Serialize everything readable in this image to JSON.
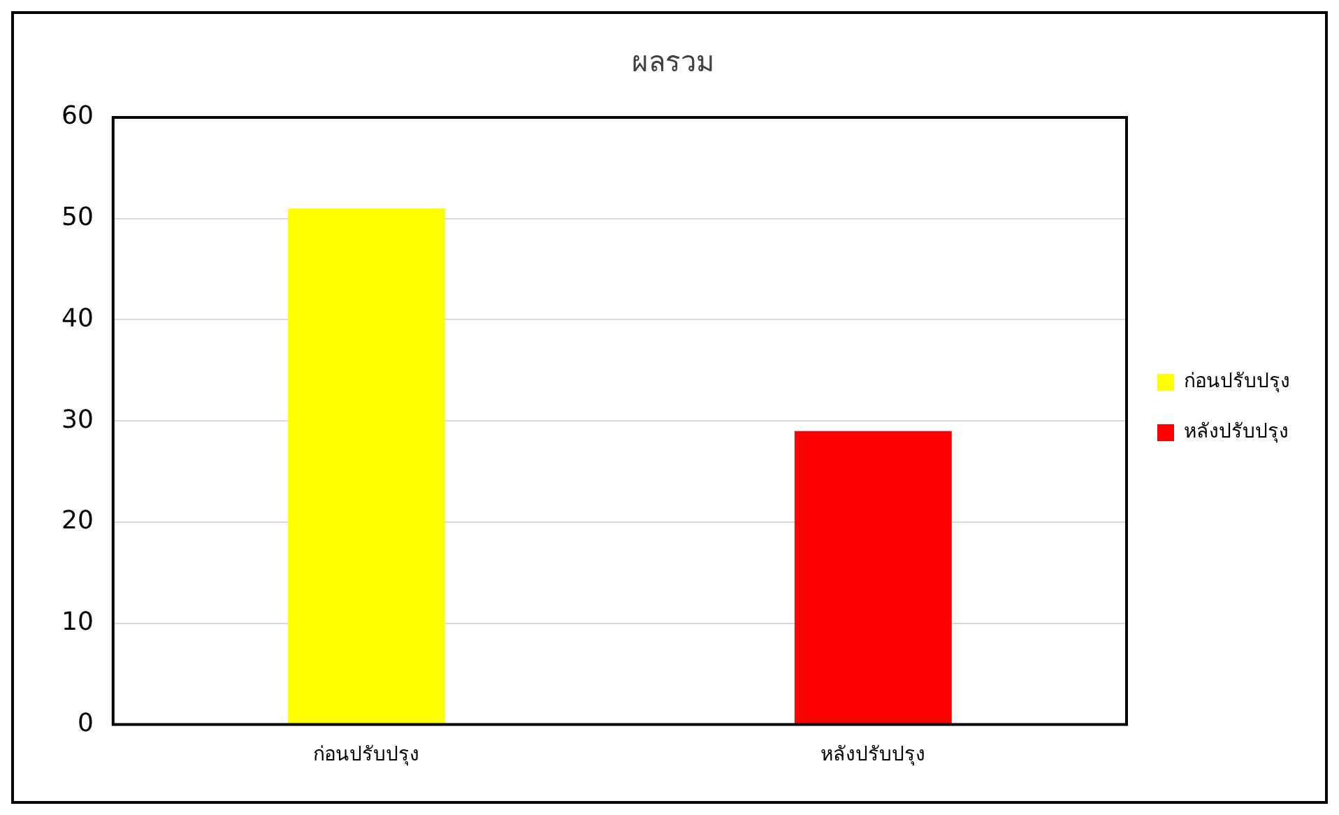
{
  "chart_data": {
    "type": "bar",
    "title": "ผลรวม",
    "categories": [
      "ก่อนปรับปรุง",
      "หลังปรับปรุง"
    ],
    "series": [
      {
        "name": "ก่อนปรับปรุง",
        "color": "#ffff00",
        "values": [
          51,
          null
        ]
      },
      {
        "name": "หลังปรับปรุง",
        "color": "#ff0000",
        "values": [
          null,
          29
        ]
      }
    ],
    "ylim": [
      0,
      60
    ],
    "yticks": [
      0,
      10,
      20,
      30,
      40,
      50,
      60
    ],
    "grid": "y",
    "legend": "right"
  }
}
